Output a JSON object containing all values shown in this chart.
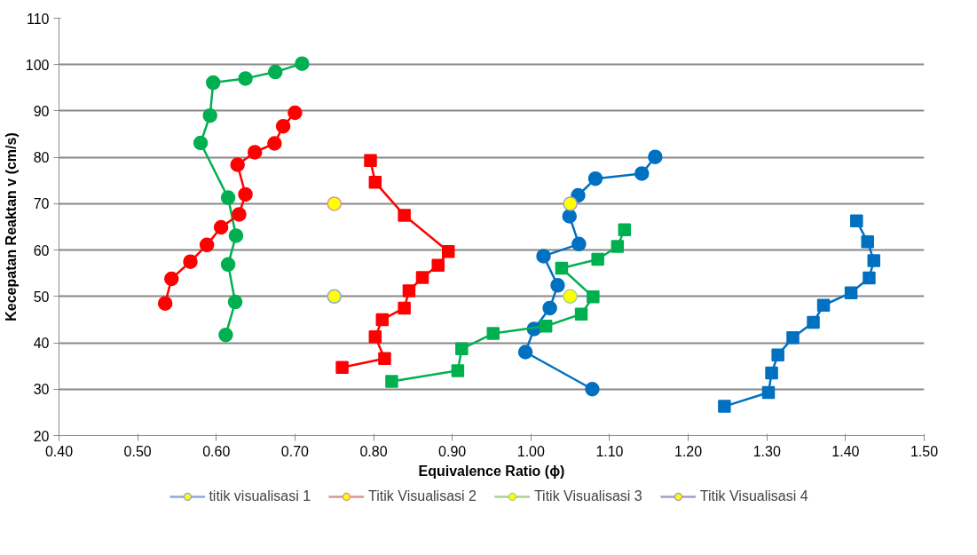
{
  "chart_data": {
    "type": "line",
    "xlabel": "Equivalence Ratio (ϕ)",
    "ylabel": "Kecepatan Reaktan v (cm/s)",
    "xlim": [
      0.4,
      1.5
    ],
    "ylim": [
      20,
      110
    ],
    "xticks": [
      {
        "value": 0.4,
        "label": "0.40"
      },
      {
        "value": 0.5,
        "label": "0.50"
      },
      {
        "value": 0.6,
        "label": "0.60"
      },
      {
        "value": 0.7,
        "label": "0.70"
      },
      {
        "value": 0.8,
        "label": "0.80"
      },
      {
        "value": 0.9,
        "label": "0.90"
      },
      {
        "value": 1.0,
        "label": "1.00"
      },
      {
        "value": 1.1,
        "label": "1.10"
      },
      {
        "value": 1.2,
        "label": "1.20"
      },
      {
        "value": 1.3,
        "label": "1.30"
      },
      {
        "value": 1.4,
        "label": "1.40"
      },
      {
        "value": 1.5,
        "label": "1.50"
      }
    ],
    "yticks": [
      20,
      30,
      40,
      50,
      60,
      70,
      80,
      90,
      100,
      110
    ],
    "grid": "y",
    "legend": "bottom",
    "line_style": "solid",
    "series": [
      {
        "color": "#00b050",
        "marker": "circle",
        "x": [
          0.709,
          0.675,
          0.637,
          0.596,
          0.592,
          0.58,
          0.615,
          0.625,
          0.615,
          0.624,
          0.612
        ],
        "values": [
          100.2,
          98.4,
          97.0,
          96.1,
          89.0,
          83.1,
          71.3,
          63.1,
          56.9,
          48.8,
          41.7
        ]
      },
      {
        "color": "#ff0000",
        "marker": "circle",
        "x": [
          0.7,
          0.685,
          0.674,
          0.649,
          0.627,
          0.637,
          0.629,
          0.606,
          0.588,
          0.567,
          0.543,
          0.535
        ],
        "values": [
          89.6,
          86.7,
          83.0,
          81.1,
          78.4,
          72.0,
          67.7,
          64.9,
          61.1,
          57.5,
          53.8,
          48.5
        ]
      },
      {
        "color": "#ff0000",
        "marker": "square",
        "x": [
          0.796,
          0.802,
          0.839,
          0.895,
          0.882,
          0.862,
          0.845,
          0.839,
          0.811,
          0.802,
          0.814,
          0.76
        ],
        "values": [
          79.3,
          74.6,
          67.5,
          59.7,
          56.7,
          54.1,
          51.2,
          47.5,
          45.0,
          41.3,
          36.6,
          34.7
        ]
      },
      {
        "color": "#0070c0",
        "marker": "circle",
        "x": [
          1.158,
          1.141,
          1.082,
          1.06,
          1.049,
          1.061,
          1.016,
          1.034,
          1.024,
          1.004,
          0.993,
          1.078
        ],
        "values": [
          80.1,
          76.5,
          75.4,
          71.8,
          67.3,
          61.3,
          58.7,
          52.4,
          47.5,
          43.0,
          38.0,
          30.0
        ]
      },
      {
        "color": "#00b050",
        "marker": "square",
        "x": [
          0.823,
          0.907,
          0.912,
          0.952,
          1.019,
          1.064,
          1.079,
          1.039,
          1.085,
          1.11,
          1.119
        ],
        "values": [
          31.7,
          34.0,
          38.7,
          42.0,
          43.6,
          46.2,
          49.9,
          56.1,
          58.0,
          60.8,
          64.4
        ]
      },
      {
        "color": "#0070c0",
        "marker": "square",
        "x": [
          1.414,
          1.428,
          1.436,
          1.43,
          1.407,
          1.372,
          1.359,
          1.333,
          1.314,
          1.306,
          1.302,
          1.246
        ],
        "values": [
          66.3,
          61.8,
          57.7,
          54.0,
          50.8,
          48.1,
          44.4,
          41.1,
          37.4,
          33.5,
          29.3,
          26.3
        ]
      },
      {
        "name": "titik visualisasi 1",
        "color": "#8ea9db",
        "colors": [
          "#ffff00"
        ],
        "marker": "circle",
        "x": [
          0.75
        ],
        "values": [
          50
        ]
      },
      {
        "name": "Titik Visualisasi 2",
        "color": "#d99694",
        "colors": [
          "#ffff00"
        ],
        "marker": "circle",
        "x": [
          0.75
        ],
        "values": [
          70
        ]
      },
      {
        "name": "Titik Visualisasi 3",
        "color": "#a9d18e",
        "colors": [
          "#ffff00"
        ],
        "marker": "circle",
        "x": [
          1.05
        ],
        "values": [
          50
        ]
      },
      {
        "name": "Titik Visualisasi 4",
        "color": "#a99bc6",
        "colors": [
          "#ffff00"
        ],
        "marker": "circle",
        "x": [
          1.05
        ],
        "values": [
          70
        ]
      }
    ]
  }
}
